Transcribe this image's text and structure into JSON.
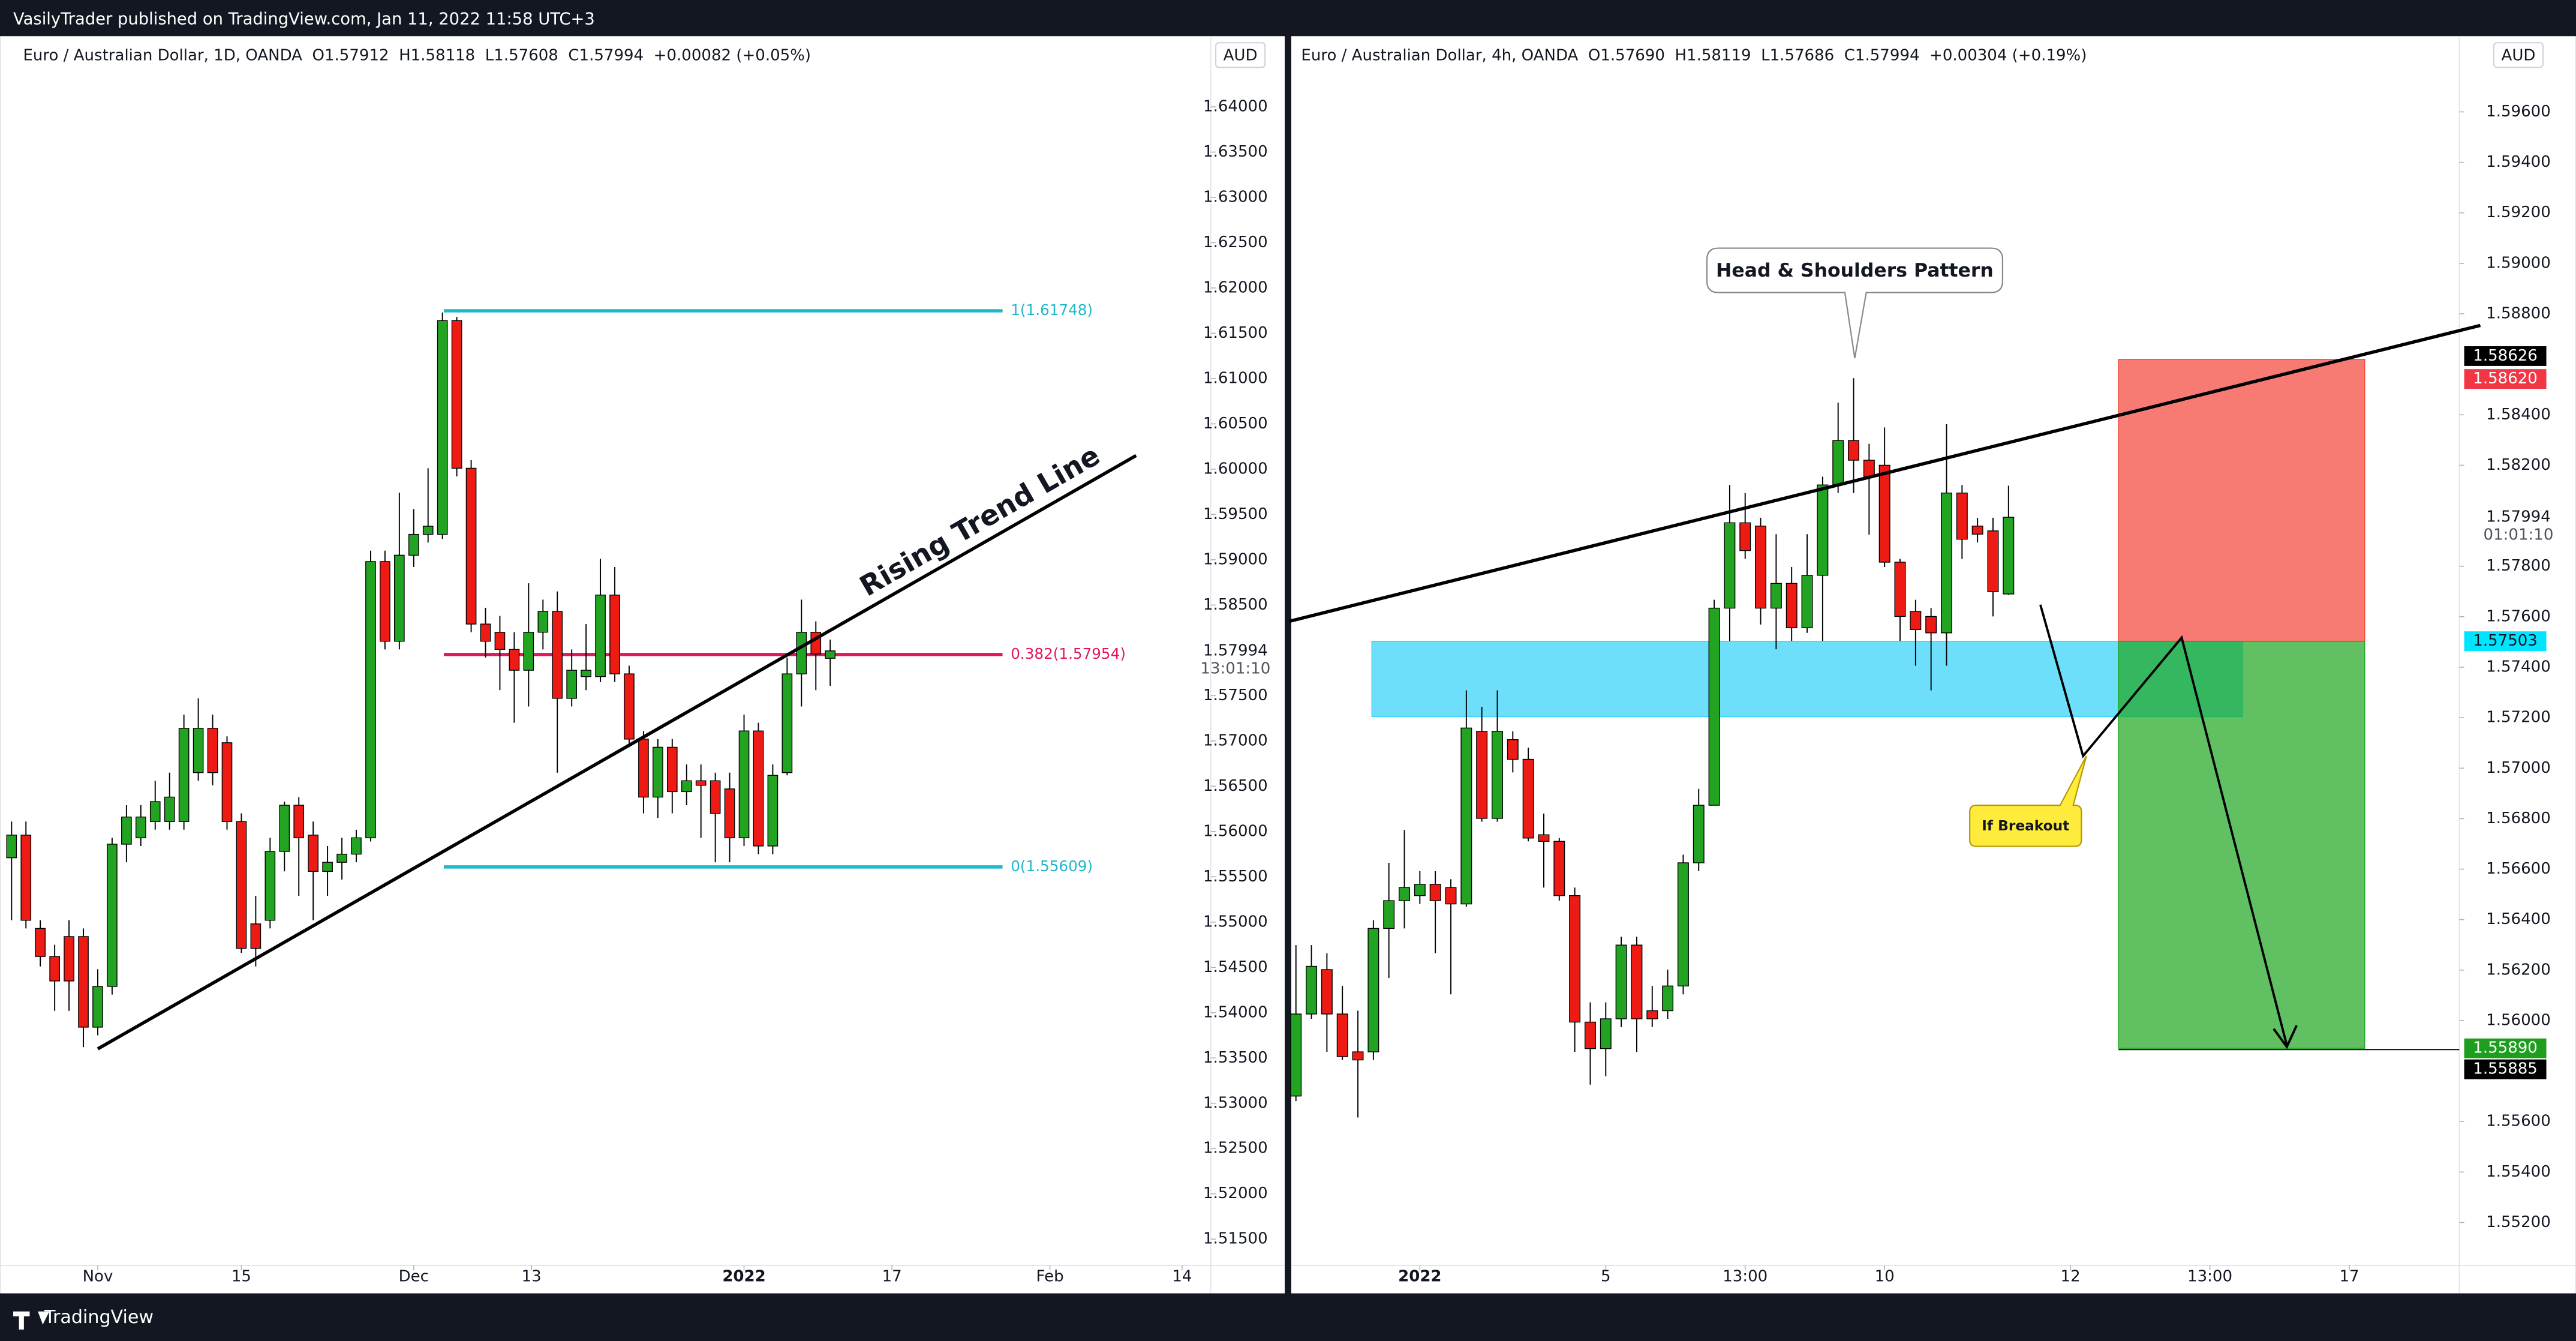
{
  "header": {
    "text": "VasilyTrader published on TradingView.com, Jan 11, 2022 11:58 UTC+3"
  },
  "footer": {
    "brand": "TradingView"
  },
  "chart_data": [
    {
      "type": "candlestick",
      "title": "Euro / Australian Dollar, 1D, OANDA  O1.57912  H1.58118  L1.57608  C1.57994  +0.00082 (+0.05%)",
      "currency": "AUD",
      "up_color": "#22a322",
      "down_color": "#ee1b14",
      "xlim": [
        -6.8,
        77.5
      ],
      "xticks": [
        {
          "value": 0,
          "label": "Nov"
        },
        {
          "value": 10,
          "label": "15"
        },
        {
          "value": 22,
          "label": "Dec"
        },
        {
          "value": 30.2,
          "label": "13"
        },
        {
          "value": 45,
          "label": "2022"
        },
        {
          "value": 55.3,
          "label": "17"
        },
        {
          "value": 66.3,
          "label": "Feb"
        },
        {
          "value": 75.5,
          "label": "14"
        }
      ],
      "ylim": [
        1.5121,
        1.6478
      ],
      "yticks": [
        {
          "value": 1.515,
          "label": "1.51500"
        },
        {
          "value": 1.52,
          "label": "1.52000"
        },
        {
          "value": 1.525,
          "label": "1.52500"
        },
        {
          "value": 1.53,
          "label": "1.53000"
        },
        {
          "value": 1.535,
          "label": "1.53500"
        },
        {
          "value": 1.54,
          "label": "1.54000"
        },
        {
          "value": 1.545,
          "label": "1.54500"
        },
        {
          "value": 1.55,
          "label": "1.55000"
        },
        {
          "value": 1.555,
          "label": "1.55500"
        },
        {
          "value": 1.56,
          "label": "1.56000"
        },
        {
          "value": 1.565,
          "label": "1.56500"
        },
        {
          "value": 1.57,
          "label": "1.57000"
        },
        {
          "value": 1.575,
          "label": "1.57500"
        },
        {
          "value": 1.585,
          "label": "1.58500"
        },
        {
          "value": 1.59,
          "label": "1.59000"
        },
        {
          "value": 1.595,
          "label": "1.59500"
        },
        {
          "value": 1.6,
          "label": "1.60000"
        },
        {
          "value": 1.605,
          "label": "1.60500"
        },
        {
          "value": 1.61,
          "label": "1.61000"
        },
        {
          "value": 1.615,
          "label": "1.61500"
        },
        {
          "value": 1.62,
          "label": "1.62000"
        },
        {
          "value": 1.625,
          "label": "1.62500"
        },
        {
          "value": 1.63,
          "label": "1.63000"
        },
        {
          "value": 1.635,
          "label": "1.63500"
        },
        {
          "value": 1.64,
          "label": "1.64000"
        }
      ],
      "x": [
        -6,
        -5,
        -4,
        -3,
        -2,
        -1,
        0,
        1,
        2,
        3,
        4,
        5,
        6,
        7,
        8,
        9,
        10,
        11,
        12,
        13,
        14,
        15,
        16,
        17,
        18,
        19,
        20,
        21,
        22,
        23,
        24,
        25,
        26,
        27,
        28,
        29,
        30,
        31,
        32,
        33,
        34,
        35,
        36,
        37,
        38,
        39,
        40,
        41,
        42,
        43,
        44,
        45,
        46,
        47,
        48,
        49,
        50,
        51
      ],
      "open": [
        1.5571,
        1.5596,
        1.5493,
        1.5462,
        1.5484,
        1.5484,
        1.5384,
        1.5429,
        1.5586,
        1.5593,
        1.5611,
        1.5611,
        1.5611,
        1.5665,
        1.5714,
        1.5698,
        1.5611,
        1.5498,
        1.5502,
        1.5578,
        1.5629,
        1.5596,
        1.5556,
        1.5566,
        1.5575,
        1.5593,
        1.5898,
        1.581,
        1.5905,
        1.5928,
        1.5928,
        1.6164,
        1.6001,
        1.5829,
        1.582,
        1.5801,
        1.5778,
        1.582,
        1.5843,
        1.5747,
        1.5771,
        1.5771,
        1.5861,
        1.5774,
        1.5702,
        1.5638,
        1.5693,
        1.5644,
        1.5656,
        1.5656,
        1.5647,
        1.5593,
        1.5711,
        1.5584,
        1.5665,
        1.5774,
        1.582,
        1.57912
      ],
      "high": [
        1.5611,
        1.5611,
        1.5502,
        1.5475,
        1.5502,
        1.5493,
        1.5448,
        1.5593,
        1.5629,
        1.5629,
        1.5656,
        1.5665,
        1.5729,
        1.5747,
        1.5729,
        1.5705,
        1.562,
        1.5529,
        1.5593,
        1.5633,
        1.5638,
        1.5611,
        1.5584,
        1.5593,
        1.5602,
        1.591,
        1.591,
        1.5974,
        1.5956,
        1.6001,
        1.6173,
        1.6168,
        1.601,
        1.5847,
        1.5838,
        1.582,
        1.5874,
        1.5856,
        1.5865,
        1.5801,
        1.5829,
        1.5901,
        1.5892,
        1.5783,
        1.5711,
        1.5702,
        1.5702,
        1.5674,
        1.5674,
        1.5665,
        1.5665,
        1.5729,
        1.572,
        1.5674,
        1.5792,
        1.5856,
        1.5832,
        1.58118
      ],
      "low": [
        1.5502,
        1.5493,
        1.5451,
        1.5402,
        1.5402,
        1.5362,
        1.5375,
        1.542,
        1.5566,
        1.5584,
        1.5602,
        1.5602,
        1.5602,
        1.5656,
        1.5651,
        1.5602,
        1.5466,
        1.5451,
        1.5493,
        1.5556,
        1.5529,
        1.5502,
        1.5529,
        1.5547,
        1.5566,
        1.5589,
        1.5801,
        1.5801,
        1.5892,
        1.5919,
        1.5923,
        1.5992,
        1.582,
        1.5792,
        1.5756,
        1.572,
        1.5738,
        1.5801,
        1.5665,
        1.5738,
        1.5756,
        1.5765,
        1.5765,
        1.5693,
        1.562,
        1.5615,
        1.562,
        1.5629,
        1.5593,
        1.5566,
        1.5566,
        1.5584,
        1.5575,
        1.5575,
        1.5662,
        1.5738,
        1.5756,
        1.57608
      ],
      "close": [
        1.5596,
        1.5502,
        1.5462,
        1.5435,
        1.5435,
        1.5384,
        1.5429,
        1.5586,
        1.5616,
        1.5616,
        1.5633,
        1.5638,
        1.5714,
        1.5714,
        1.5665,
        1.5611,
        1.5471,
        1.5471,
        1.5578,
        1.5629,
        1.5593,
        1.5556,
        1.5566,
        1.5575,
        1.5593,
        1.5898,
        1.581,
        1.5905,
        1.5928,
        1.5937,
        1.6164,
        1.6001,
        1.5829,
        1.581,
        1.5801,
        1.5778,
        1.582,
        1.5843,
        1.5747,
        1.5778,
        1.5778,
        1.5861,
        1.5774,
        1.5702,
        1.5638,
        1.5693,
        1.5644,
        1.5656,
        1.5651,
        1.562,
        1.5593,
        1.5711,
        1.5584,
        1.5662,
        1.5774,
        1.582,
        1.5796,
        1.57994
      ],
      "last_price": {
        "value": 1.57994,
        "label": "1.57994",
        "countdown": "13:01:10"
      },
      "fib_levels": [
        {
          "value": 1.61748,
          "label": "1(1.61748)",
          "color": "#1fb8cc",
          "from": 24.1,
          "to": 63
        },
        {
          "value": 1.57954,
          "label": "0.382(1.57954)",
          "color": "#e0195f",
          "from": 24.1,
          "to": 63
        },
        {
          "value": 1.55609,
          "label": "0(1.55609)",
          "color": "#1fb8cc",
          "from": 24.1,
          "to": 63
        }
      ],
      "trend_line": {
        "label": "Rising Trend Line",
        "points": [
          [
            0,
            1.536
          ],
          [
            72.3,
            1.6015
          ]
        ]
      }
    },
    {
      "type": "candlestick",
      "title": "Euro / Australian Dollar, 4h, OANDA  O1.57690  H1.58119  L1.57686  C1.57994  +0.00304 (+0.19%)",
      "currency": "AUD",
      "up_color": "#22a322",
      "down_color": "#ee1b14",
      "xlim": [
        -0.3,
        75.1
      ],
      "xticks": [
        {
          "value": 8,
          "label": "2022"
        },
        {
          "value": 20,
          "label": "5"
        },
        {
          "value": 29,
          "label": "13:00"
        },
        {
          "value": 38,
          "label": "10"
        },
        {
          "value": 50,
          "label": "12"
        },
        {
          "value": 59,
          "label": "13:00"
        },
        {
          "value": 68,
          "label": "17"
        }
      ],
      "ylim": [
        1.5503,
        1.599
      ],
      "yticks": [
        {
          "value": 1.552,
          "label": "1.55200"
        },
        {
          "value": 1.554,
          "label": "1.55400"
        },
        {
          "value": 1.556,
          "label": "1.55600"
        },
        {
          "value": 1.56,
          "label": "1.56000"
        },
        {
          "value": 1.562,
          "label": "1.56200"
        },
        {
          "value": 1.564,
          "label": "1.56400"
        },
        {
          "value": 1.566,
          "label": "1.56600"
        },
        {
          "value": 1.568,
          "label": "1.56800"
        },
        {
          "value": 1.57,
          "label": "1.57000"
        },
        {
          "value": 1.572,
          "label": "1.57200"
        },
        {
          "value": 1.574,
          "label": "1.57400"
        },
        {
          "value": 1.576,
          "label": "1.57600"
        },
        {
          "value": 1.578,
          "label": "1.57800"
        },
        {
          "value": 1.582,
          "label": "1.58200"
        },
        {
          "value": 1.584,
          "label": "1.58400"
        },
        {
          "value": 1.588,
          "label": "1.58800"
        },
        {
          "value": 1.59,
          "label": "1.59000"
        },
        {
          "value": 1.592,
          "label": "1.59200"
        },
        {
          "value": 1.594,
          "label": "1.59400"
        },
        {
          "value": 1.596,
          "label": "1.59600"
        }
      ],
      "x": [
        0,
        1,
        2,
        3,
        4,
        5,
        6,
        7,
        8,
        9,
        10,
        11,
        12,
        13,
        14,
        15,
        16,
        17,
        18,
        19,
        20,
        21,
        22,
        23,
        24,
        25,
        26,
        27,
        28,
        29,
        30,
        31,
        32,
        33,
        34,
        35,
        36,
        37,
        38,
        39,
        40,
        41,
        42,
        43,
        44,
        45,
        46
      ],
      "open": [
        1.55701,
        1.56026,
        1.56202,
        1.56026,
        1.55876,
        1.55876,
        1.56365,
        1.56475,
        1.56495,
        1.5654,
        1.56527,
        1.56462,
        1.57146,
        1.56801,
        1.57113,
        1.57035,
        1.56736,
        1.5671,
        1.56495,
        1.55994,
        1.55889,
        1.56007,
        1.56299,
        1.56039,
        1.56039,
        1.56137,
        1.56625,
        1.56853,
        1.57634,
        1.57972,
        1.57959,
        1.57634,
        1.57732,
        1.57556,
        1.57764,
        1.58122,
        1.58298,
        1.5822,
        1.582,
        1.57816,
        1.57621,
        1.57601,
        1.57536,
        1.5809,
        1.57959,
        1.5794,
        1.5769
      ],
      "high": [
        1.56299,
        1.56299,
        1.56267,
        1.56137,
        1.56039,
        1.56397,
        1.56625,
        1.56755,
        1.56592,
        1.56592,
        1.5656,
        1.57308,
        1.57243,
        1.57308,
        1.57146,
        1.57081,
        1.5682,
        1.56723,
        1.56527,
        1.56072,
        1.56072,
        1.56332,
        1.56332,
        1.56137,
        1.56202,
        1.56657,
        1.56918,
        1.57667,
        1.58122,
        1.5809,
        1.57992,
        1.57927,
        1.57797,
        1.57927,
        1.58155,
        1.58448,
        1.58545,
        1.58285,
        1.5835,
        1.57829,
        1.57667,
        1.57634,
        1.58363,
        1.58122,
        1.57992,
        1.57992,
        1.58119
      ],
      "low": [
        1.55681,
        1.56007,
        1.55876,
        1.55844,
        1.55616,
        1.55844,
        1.56169,
        1.56365,
        1.56462,
        1.56267,
        1.56104,
        1.5645,
        1.56788,
        1.56788,
        1.56983,
        1.5671,
        1.56527,
        1.56475,
        1.55876,
        1.55746,
        1.55779,
        1.55974,
        1.55876,
        1.55974,
        1.56007,
        1.56104,
        1.56592,
        1.56853,
        1.57504,
        1.57829,
        1.57569,
        1.57471,
        1.57504,
        1.57536,
        1.57504,
        1.5809,
        1.5809,
        1.57925,
        1.57797,
        1.57504,
        1.57406,
        1.57308,
        1.57406,
        1.57829,
        1.57894,
        1.57601,
        1.57686
      ],
      "close": [
        1.56026,
        1.56215,
        1.56026,
        1.55857,
        1.55844,
        1.56365,
        1.56475,
        1.56527,
        1.5654,
        1.56475,
        1.56462,
        1.57159,
        1.56801,
        1.57146,
        1.57035,
        1.56723,
        1.5671,
        1.56495,
        1.55994,
        1.55889,
        1.56007,
        1.56299,
        1.56007,
        1.56007,
        1.56137,
        1.56625,
        1.56853,
        1.57634,
        1.57972,
        1.57862,
        1.57634,
        1.57732,
        1.57556,
        1.57764,
        1.58122,
        1.58298,
        1.5822,
        1.58155,
        1.57816,
        1.57601,
        1.57549,
        1.57536,
        1.5809,
        1.57907,
        1.57927,
        1.57699,
        1.57994
      ],
      "last_price": {
        "value": 1.57994,
        "label": "1.57994",
        "countdown": "01:01:10"
      },
      "price_tags": [
        {
          "value": 1.58626,
          "label": "1.58626",
          "color": "#000000"
        },
        {
          "value": 1.5862,
          "label": "1.58620",
          "color": "#f23645"
        },
        {
          "value": 1.57503,
          "label": "1.57503",
          "color": "#00e5ff"
        },
        {
          "value": 1.5589,
          "label": "1.55890",
          "color": "#1e9e1e"
        },
        {
          "value": 1.55885,
          "label": "1.55885",
          "color": "#000000"
        }
      ],
      "zones": [
        {
          "x": [
            4.9,
            61.1
          ],
          "y": [
            1.57204,
            1.57503
          ],
          "color": "#2fd2fa"
        },
        {
          "x": [
            53.1,
            69
          ],
          "y": [
            1.57503,
            1.5862
          ],
          "color": "#f44336"
        },
        {
          "x": [
            53.1,
            69
          ],
          "y": [
            1.5589,
            1.57503
          ],
          "color": "#1ea51e"
        }
      ],
      "trend_line": {
        "points": [
          [
            -0.42,
            1.57582
          ],
          [
            76.46,
            1.58754
          ]
        ]
      },
      "callouts": [
        "Head & Shoulders Pattern",
        "If Breakout"
      ]
    }
  ]
}
